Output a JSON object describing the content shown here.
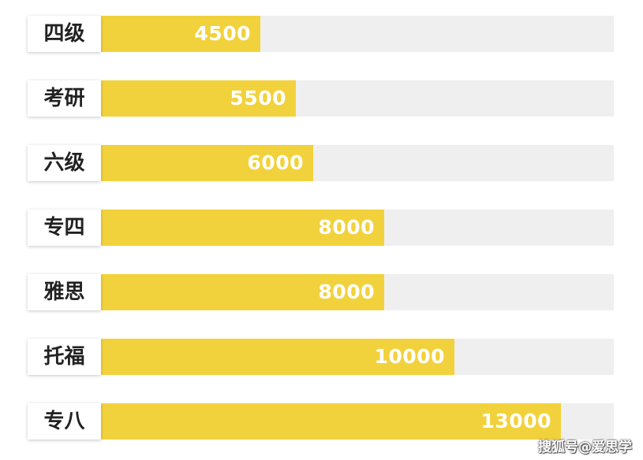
{
  "chart_data": {
    "type": "bar",
    "orientation": "horizontal",
    "categories": [
      "四级",
      "考研",
      "六级",
      "专四",
      "雅思",
      "托福",
      "专八"
    ],
    "values": [
      4500,
      5500,
      6000,
      8000,
      8000,
      10000,
      13000
    ],
    "title": "",
    "xlabel": "",
    "ylabel": "",
    "xlim": [
      0,
      14500
    ],
    "grid": false,
    "colors": {
      "bar": "#f2d23c",
      "track": "#efefef",
      "value_text": "#ffffff"
    }
  },
  "watermark": "搜狐号@爱思学"
}
